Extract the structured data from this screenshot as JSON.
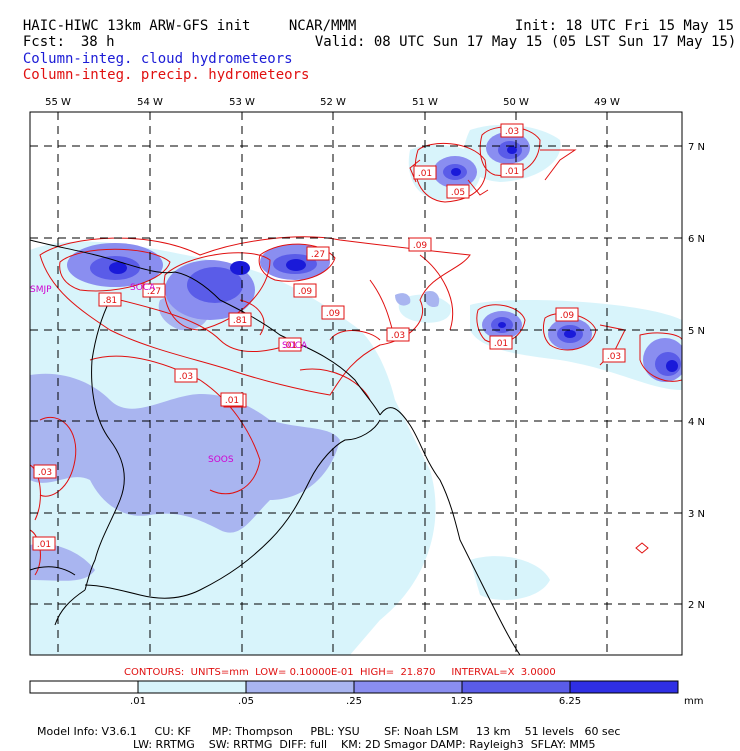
{
  "header": {
    "model_title": "HAIC-HIWC 13km ARW-GFS init",
    "institution": "NCAR/MMM",
    "init": "Init: 18 UTC Fri 15 May 15",
    "fcst_label": "Fcst:",
    "fcst_value": "38 h",
    "valid": "Valid: 08 UTC Sun 17 May 15 (05 LST Sun 17 May 15)",
    "field_cloud": "Column-integ. cloud hydrometeors",
    "field_precip": "Column-integ. precip. hydrometeors"
  },
  "map": {
    "longitude_labels": [
      {
        "label": "55 W",
        "lon": -55
      },
      {
        "label": "54 W",
        "lon": -54
      },
      {
        "label": "53 W",
        "lon": -53
      },
      {
        "label": "52 W",
        "lon": -52
      },
      {
        "label": "51 W",
        "lon": -51
      },
      {
        "label": "50 W",
        "lon": -50
      },
      {
        "label": "49 W",
        "lon": -49
      }
    ],
    "latitude_labels": [
      {
        "label": "7 N",
        "lat": 7
      },
      {
        "label": "6 N",
        "lat": 6
      },
      {
        "label": "5 N",
        "lat": 5
      },
      {
        "label": "4 N",
        "lat": 4
      },
      {
        "label": "3 N",
        "lat": 3
      },
      {
        "label": "2 N",
        "lat": 2
      }
    ],
    "stations": [
      "SMJP",
      "SOCA",
      "SOOS",
      "SOCA"
    ],
    "contour_labels": [
      ".01",
      ".05",
      ".03",
      ".01",
      ".09",
      ".81",
      ".27",
      ".81",
      ".27",
      ".09",
      ".09",
      ".01",
      ".03",
      ".01",
      ".09",
      ".03",
      ".01",
      ".03",
      ".03",
      ".01",
      ".01"
    ]
  },
  "legend": {
    "contours_text": "CONTOURS:  UNITS=mm  LOW= 0.10000E-01  HIGH=  21.870     INTERVAL=X  3.0000",
    "levels": [
      ".01",
      ".05",
      ".25",
      "1.25",
      "6.25"
    ],
    "units": "mm",
    "colors": [
      "#ffffff",
      "#d8f4fb",
      "#a9b5f0",
      "#8a8ef0",
      "#5a5ce8",
      "#2f2fe4",
      "#1a1ad9"
    ]
  },
  "model_info": {
    "line1": "Model Info: V3.6.1     CU: KF      MP: Thompson     PBL: YSU       SF: Noah LSM     13 km    51 levels   60 sec",
    "line2": "LW: RRTMG    SW: RRTMG  DIFF: full    KM: 2D Smagor DAMP: Rayleigh3  SFLAY: MM5"
  }
}
